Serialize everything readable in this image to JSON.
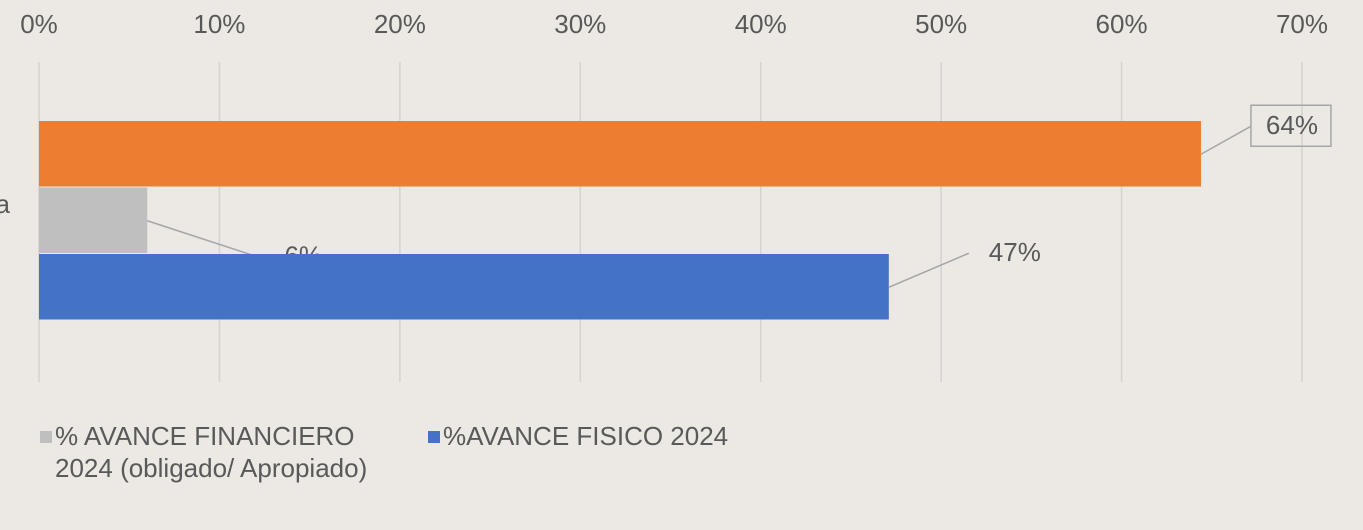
{
  "chart_data": {
    "type": "bar",
    "orientation": "horizontal",
    "categories": [
      "a"
    ],
    "series": [
      {
        "color": "#ed7d31",
        "values": [
          64.4
        ],
        "value_labels": [
          "64%"
        ]
      },
      {
        "name": "% AVANCE FINANCIERO 2024 (obligado/ Apropiado)",
        "color": "#bfbfbf",
        "values": [
          6
        ],
        "value_labels": [
          "6%"
        ]
      },
      {
        "name": "%AVANCE FISICO 2024",
        "color": "#4472c4",
        "values": [
          47.1
        ],
        "value_labels": [
          "47%"
        ]
      }
    ],
    "xlim": [
      0,
      70
    ],
    "xticks": [
      {
        "value": 0,
        "label": "0%"
      },
      {
        "value": 10,
        "label": "10%"
      },
      {
        "value": 20,
        "label": "20%"
      },
      {
        "value": 30,
        "label": "30%"
      },
      {
        "value": 40,
        "label": "40%"
      },
      {
        "value": 50,
        "label": "50%"
      },
      {
        "value": 60,
        "label": "60%"
      },
      {
        "value": 70,
        "label": "70%"
      }
    ],
    "grid": true,
    "legend": "bottom"
  }
}
